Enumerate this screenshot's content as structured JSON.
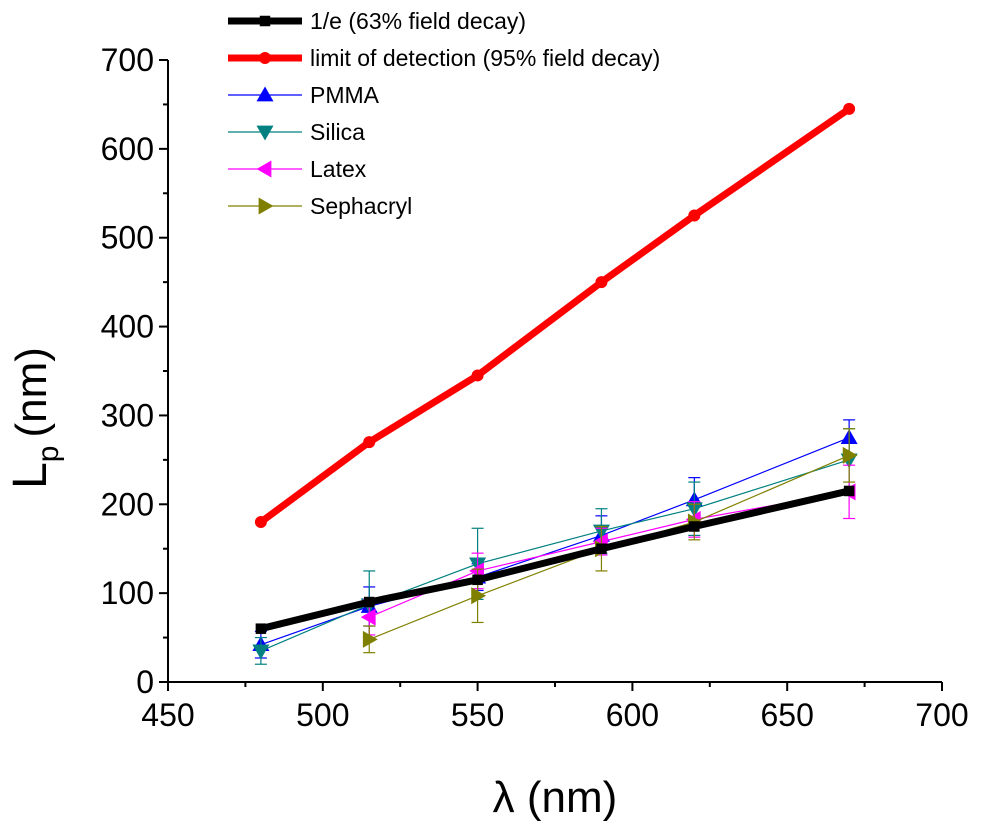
{
  "chart_data": {
    "type": "line",
    "title": "",
    "xlabel": "λ (nm)",
    "ylabel_main": "L",
    "ylabel_sub": "p",
    "ylabel_unit": "(nm)",
    "xlim": [
      450,
      700
    ],
    "ylim": [
      0,
      700
    ],
    "xticks": [
      450,
      500,
      550,
      600,
      650,
      700
    ],
    "yticks": [
      0,
      100,
      200,
      300,
      400,
      500,
      600,
      700
    ],
    "grid": false,
    "legend_position": "top-left",
    "series": [
      {
        "name": "1/e (63% field decay)",
        "color": "#000000",
        "marker": "square",
        "weight": "thick",
        "x": [
          480,
          515,
          550,
          590,
          620,
          670
        ],
        "y": [
          60,
          90,
          115,
          150,
          175,
          215
        ],
        "err": null
      },
      {
        "name": "limit of detection (95% field decay)",
        "color": "#ff0000",
        "marker": "circle",
        "weight": "thick",
        "x": [
          480,
          515,
          550,
          590,
          620,
          670
        ],
        "y": [
          180,
          270,
          345,
          450,
          525,
          645
        ],
        "err": null
      },
      {
        "name": "PMMA",
        "color": "#0000ff",
        "marker": "triangle-up",
        "weight": "thin",
        "x": [
          480,
          515,
          550,
          590,
          620,
          670
        ],
        "y": [
          42,
          85,
          118,
          165,
          205,
          275
        ],
        "err": [
          15,
          22,
          15,
          22,
          25,
          20
        ]
      },
      {
        "name": "Silica",
        "color": "#008080",
        "marker": "triangle-down",
        "weight": "thin",
        "x": [
          480,
          515,
          550,
          590,
          620,
          670
        ],
        "y": [
          35,
          87,
          133,
          170,
          195,
          250
        ],
        "err": [
          15,
          38,
          40,
          25,
          30,
          35
        ]
      },
      {
        "name": "Latex",
        "color": "#ff00ff",
        "marker": "triangle-left",
        "weight": "thin",
        "x": [
          515,
          550,
          590,
          620,
          670
        ],
        "y": [
          73,
          125,
          158,
          183,
          214
        ],
        "err": [
          20,
          20,
          15,
          20,
          30
        ]
      },
      {
        "name": "Sephacryl",
        "color": "#808000",
        "marker": "triangle-right",
        "weight": "thin",
        "x": [
          515,
          550,
          590,
          620,
          670
        ],
        "y": [
          48,
          97,
          150,
          180,
          255
        ],
        "err": [
          15,
          30,
          25,
          20,
          30
        ]
      }
    ]
  }
}
